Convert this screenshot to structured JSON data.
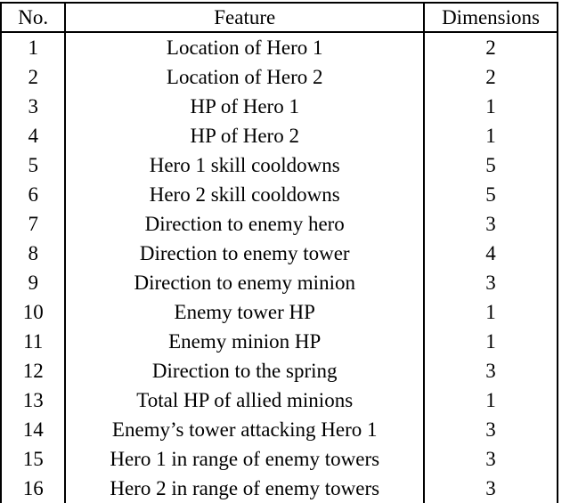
{
  "table": {
    "headers": [
      "No.",
      "Feature",
      "Dimensions"
    ],
    "rows": [
      {
        "no": "1",
        "feature": "Location of Hero 1",
        "dimensions": "2"
      },
      {
        "no": "2",
        "feature": "Location of Hero 2",
        "dimensions": "2"
      },
      {
        "no": "3",
        "feature": "HP of Hero 1",
        "dimensions": "1"
      },
      {
        "no": "4",
        "feature": "HP of Hero 2",
        "dimensions": "1"
      },
      {
        "no": "5",
        "feature": "Hero 1 skill cooldowns",
        "dimensions": "5"
      },
      {
        "no": "6",
        "feature": "Hero 2 skill cooldowns",
        "dimensions": "5"
      },
      {
        "no": "7",
        "feature": "Direction to enemy hero",
        "dimensions": "3"
      },
      {
        "no": "8",
        "feature": "Direction to enemy tower",
        "dimensions": "4"
      },
      {
        "no": "9",
        "feature": "Direction to enemy minion",
        "dimensions": "3"
      },
      {
        "no": "10",
        "feature": "Enemy tower HP",
        "dimensions": "1"
      },
      {
        "no": "11",
        "feature": "Enemy minion HP",
        "dimensions": "1"
      },
      {
        "no": "12",
        "feature": "Direction to the spring",
        "dimensions": "3"
      },
      {
        "no": "13",
        "feature": "Total HP of allied minions",
        "dimensions": "1"
      },
      {
        "no": "14",
        "feature": "Enemy’s tower attacking Hero 1",
        "dimensions": "3"
      },
      {
        "no": "15",
        "feature": "Hero 1 in range of enemy towers",
        "dimensions": "3"
      },
      {
        "no": "16",
        "feature": "Hero 2 in range of enemy towers",
        "dimensions": "3"
      }
    ]
  },
  "colors": {
    "text": "#000000",
    "border": "#000000",
    "background": "#ffffff"
  }
}
